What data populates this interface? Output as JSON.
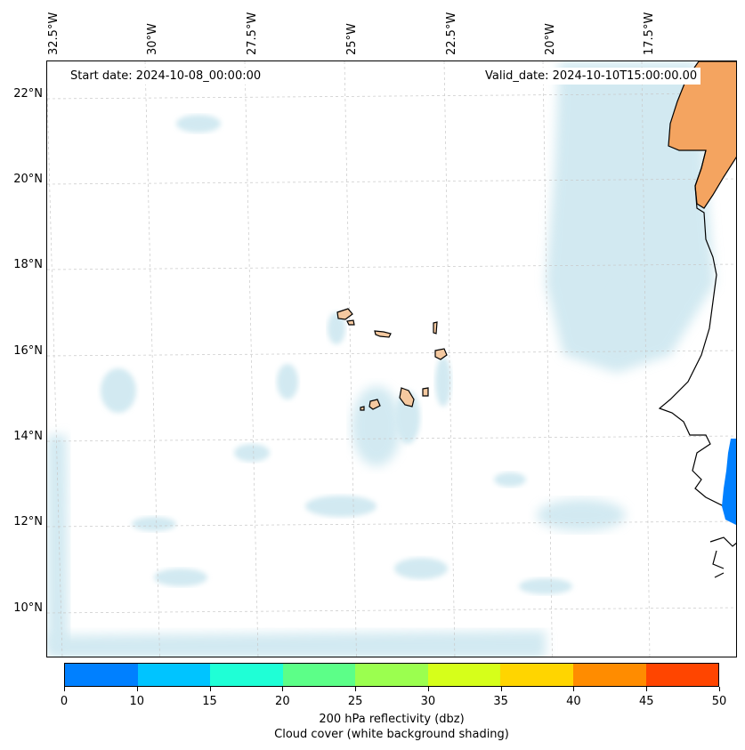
{
  "map": {
    "start_date_label": "Start date: 2024-10-08_00:00:00",
    "valid_date_label": "Valid_date: 2024-10-10T15:00:00.00",
    "lon_labels": [
      "32.5°W",
      "30°W",
      "27.5°W",
      "25°W",
      "22.5°W",
      "20°W",
      "17.5°W"
    ],
    "lat_labels": [
      "22°N",
      "20°N",
      "18°N",
      "16°N",
      "14°N",
      "12°N",
      "10°N"
    ],
    "colors": {
      "cloud": "#add8e6",
      "land_sahara": "#f4a460",
      "islands": "#f5c9a0",
      "coastline": "#000000",
      "grid": "#c8c8c8",
      "reflectivity_patch": "#0080ff"
    }
  },
  "colorbar": {
    "ticks": [
      "0",
      "10",
      "15",
      "20",
      "25",
      "30",
      "35",
      "40",
      "45",
      "50"
    ],
    "colors": [
      "#0080ff",
      "#00c4ff",
      "#1fffd6",
      "#5cff88",
      "#9bff4f",
      "#d6ff1a",
      "#ffd500",
      "#ff8c00",
      "#ff4500"
    ],
    "label": "200 hPa reflectivity (dbz)",
    "sublabel": "Cloud cover (white background shading)"
  }
}
